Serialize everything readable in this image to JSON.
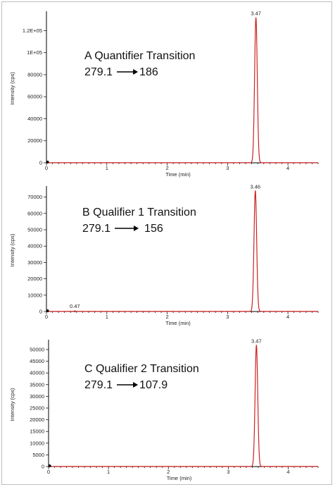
{
  "colors": {
    "trace": "#cc2222",
    "axis": "#000000",
    "frame": "#bdbdbd"
  },
  "chart_data": [
    {
      "type": "line",
      "xlabel": "Time (min)",
      "ylabel": "Intensity (cps)",
      "xlim": [
        0,
        4.5
      ],
      "ylim": [
        0,
        135000
      ],
      "x_ticks": [
        0,
        1,
        2,
        3,
        4
      ],
      "y_ticks": [
        0,
        20000,
        40000,
        60000,
        80000,
        100000,
        120000
      ],
      "y_tick_labels": [
        "0",
        "20000",
        "40000",
        "60000",
        "80000",
        "1E+05",
        "1.2E+05"
      ],
      "annotation": {
        "title": "A Quantifier Transition",
        "precursor": "279.1",
        "product": "186"
      },
      "peaks": [
        {
          "rt": 3.47,
          "label": "3.47",
          "height": 132000,
          "sigma": 0.022
        }
      ],
      "noise_level": 200
    },
    {
      "type": "line",
      "xlabel": "Time (min)",
      "ylabel": "Intensity (cps)",
      "xlim": [
        0,
        4.5
      ],
      "ylim": [
        0,
        75000
      ],
      "x_ticks": [
        0,
        1,
        2,
        3,
        4
      ],
      "y_ticks": [
        0,
        10000,
        20000,
        30000,
        40000,
        50000,
        60000,
        70000
      ],
      "y_tick_labels": [
        "0",
        "10000",
        "20000",
        "30000",
        "40000",
        "50000",
        "60000",
        "70000"
      ],
      "annotation": {
        "title": "B Qualifier 1 Transition",
        "precursor": "279.1",
        "product": "156"
      },
      "peaks": [
        {
          "rt": 3.46,
          "label": "3.46",
          "height": 74000,
          "sigma": 0.022
        }
      ],
      "minor_peaks": [
        {
          "rt": 0.47,
          "label": "0.47",
          "height": 300,
          "sigma": 0.01
        }
      ],
      "noise_level": 150
    },
    {
      "type": "line",
      "xlabel": "Time (min)",
      "ylabel": "Intensity (cps)",
      "xlim": [
        0,
        4.5
      ],
      "ylim": [
        0,
        53000
      ],
      "x_ticks": [
        0,
        1,
        2,
        3,
        4
      ],
      "y_ticks": [
        0,
        5000,
        10000,
        15000,
        20000,
        25000,
        30000,
        35000,
        40000,
        45000,
        50000
      ],
      "y_tick_labels": [
        "0",
        "5000",
        "10000",
        "15000",
        "20000",
        "25000",
        "30000",
        "35000",
        "40000",
        "45000",
        "50000"
      ],
      "annotation": {
        "title": "C Qualifier 2 Transition",
        "precursor": "279.1",
        "product": "107.9"
      },
      "peaks": [
        {
          "rt": 3.47,
          "label": "3.47",
          "height": 52000,
          "sigma": 0.022
        }
      ],
      "noise_level": 100
    }
  ]
}
